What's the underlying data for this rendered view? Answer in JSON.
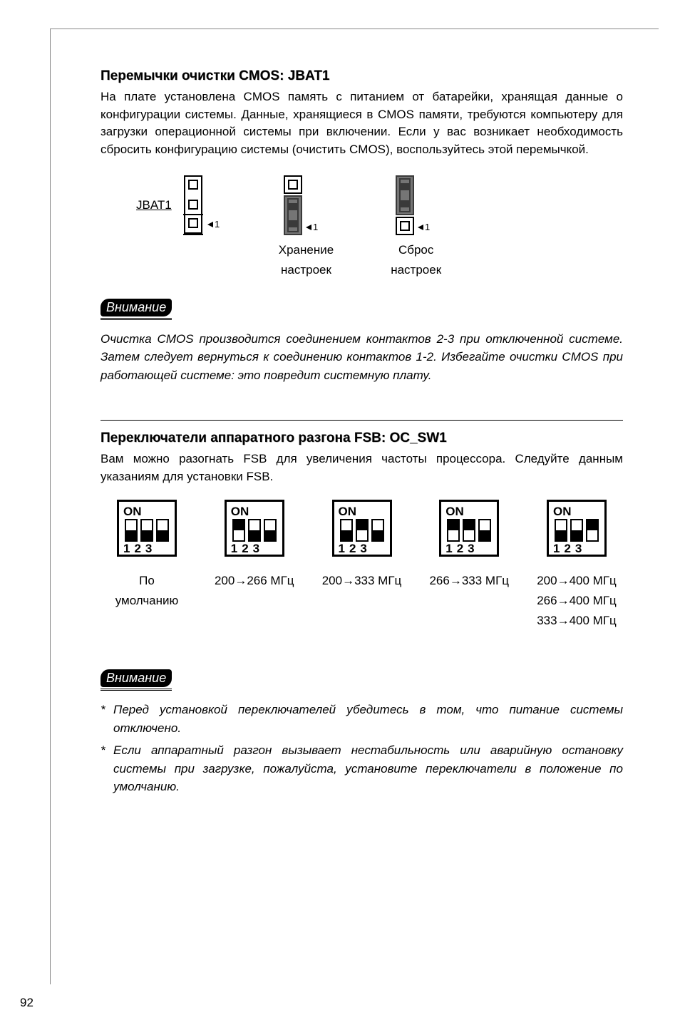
{
  "section1": {
    "title": "Перемычки очистки CMOS: JBAT1",
    "body": "На плате установлена CMOS память с питанием от батарейки, хранящая данные о конфигурации системы. Данные, хранящиеся в CMOS памяти, требуются компьютеру для загрузки операционной системы при включении. Если у вас возникает необходимость сбросить конфигурацию системы (очистить CMOS), воспользуйтесь этой перемычкой.",
    "jumper_label": "JBAT1",
    "pin1": "1",
    "keep_caption_l1": "Хранение",
    "keep_caption_l2": "настроек",
    "clear_caption_l1": "Сброс",
    "clear_caption_l2": "настроек"
  },
  "attention1": {
    "label": "Внимание",
    "text": "Очистка CMOS производится соединением контактов 2-3 при отключенной системе. Затем следует вернуться к соединению контактов 1-2. Избегайте очистки CMOS при работающей системе: это повредит системную плату."
  },
  "section2": {
    "title": "Переключатели аппаратного разгона FSB: OC_SW1",
    "body": "Вам можно разогнать FSB для увеличения частоты процессора. Следуйте данным указаниям для установки FSB.",
    "on_label": "ON",
    "num_label": "123",
    "switches": [
      {
        "states": [
          "dn",
          "dn",
          "dn"
        ],
        "lines": [
          "По",
          "умолчанию"
        ]
      },
      {
        "states": [
          "up",
          "dn",
          "dn"
        ],
        "lines": [
          "200→266 МГц"
        ]
      },
      {
        "states": [
          "dn",
          "up",
          "dn"
        ],
        "lines": [
          "200→333 МГц"
        ]
      },
      {
        "states": [
          "up",
          "up",
          "dn"
        ],
        "lines": [
          "266→333 МГц"
        ]
      },
      {
        "states": [
          "dn",
          "dn",
          "up"
        ],
        "lines": [
          "200→400 МГц",
          "266→400 МГц",
          "333→400 МГц"
        ]
      }
    ]
  },
  "attention2": {
    "label": "Внимание",
    "notes": [
      "Перед установкой переключателей убедитесь в том, что питание системы отключено.",
      "Если аппаратный разгон вызывает нестабильность или аварийную остановку системы при загрузке, пожалуйста, установите переключатели в положение по умолчанию."
    ]
  },
  "page_number": "92",
  "colors": {
    "black": "#000000",
    "grey": "#757575"
  }
}
